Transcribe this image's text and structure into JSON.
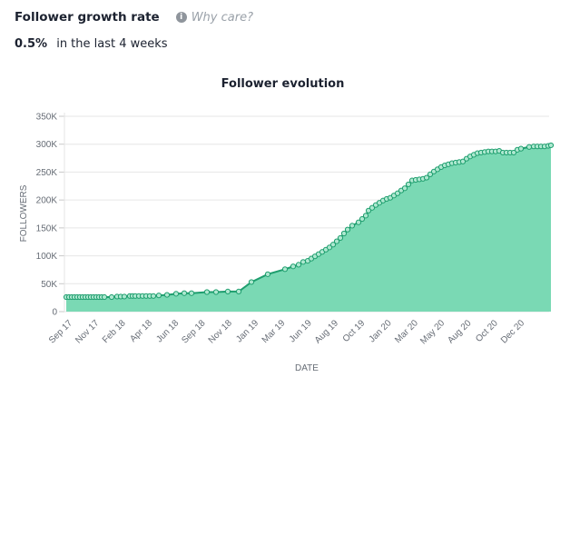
{
  "header": {
    "title": "Follower growth rate",
    "why_care": "Why care?",
    "info_icon": "info-circle-icon"
  },
  "stat": {
    "value": "0.5%",
    "label": "in the last 4 weeks"
  },
  "colors": {
    "line": "#1e9e6e",
    "fill": "#7ad9b4",
    "grid": "#e6e6e6"
  },
  "chart_data": {
    "type": "area",
    "title": "Follower evolution",
    "xlabel": "DATE",
    "ylabel": "FOLLOWERS",
    "ylim": [
      0,
      350000
    ],
    "y_ticks": [
      "0",
      "50K",
      "100K",
      "150K",
      "200K",
      "250K",
      "300K",
      "350K"
    ],
    "x_ticks": [
      "Sep 17",
      "Nov 17",
      "Feb 18",
      "Apr 18",
      "Jun 18",
      "Sep 18",
      "Nov 18",
      "Jan 19",
      "Mar 19",
      "Jun 19",
      "Aug 19",
      "Oct 19",
      "Jan 20",
      "Mar 20",
      "May 20",
      "Aug 20",
      "Oct 20",
      "Dec 20"
    ],
    "grid": true,
    "legend": "none",
    "series": [
      {
        "name": "Followers",
        "points_k": [
          [
            0,
            26
          ],
          [
            3,
            26
          ],
          [
            6,
            26
          ],
          [
            9,
            26
          ],
          [
            12,
            26
          ],
          [
            15,
            26
          ],
          [
            18,
            26
          ],
          [
            21,
            26
          ],
          [
            24,
            26
          ],
          [
            27,
            26
          ],
          [
            30,
            26
          ],
          [
            33,
            26
          ],
          [
            36,
            26
          ],
          [
            39,
            26
          ],
          [
            42,
            26
          ],
          [
            50,
            26
          ],
          [
            56,
            27
          ],
          [
            60,
            27
          ],
          [
            64,
            27
          ],
          [
            70,
            28
          ],
          [
            73,
            28
          ],
          [
            76,
            28
          ],
          [
            80,
            28
          ],
          [
            84,
            28
          ],
          [
            88,
            28
          ],
          [
            92,
            28
          ],
          [
            96,
            28
          ],
          [
            102,
            29
          ],
          [
            111,
            30
          ],
          [
            121,
            32
          ],
          [
            130,
            33
          ],
          [
            138,
            33
          ],
          [
            155,
            35
          ],
          [
            165,
            35
          ],
          [
            178,
            36
          ],
          [
            190,
            36
          ],
          [
            204,
            53
          ],
          [
            222,
            67
          ],
          [
            241,
            76
          ],
          [
            250,
            81
          ],
          [
            256,
            84
          ],
          [
            261,
            89
          ],
          [
            266,
            91
          ],
          [
            270,
            95
          ],
          [
            274,
            99
          ],
          [
            278,
            103
          ],
          [
            282,
            107
          ],
          [
            286,
            111
          ],
          [
            290,
            115
          ],
          [
            294,
            120
          ],
          [
            298,
            126
          ],
          [
            302,
            132
          ],
          [
            306,
            140
          ],
          [
            310,
            147
          ],
          [
            315,
            154
          ],
          [
            322,
            160
          ],
          [
            326,
            166
          ],
          [
            330,
            172
          ],
          [
            333,
            181
          ],
          [
            337,
            186
          ],
          [
            341,
            191
          ],
          [
            345,
            195
          ],
          [
            349,
            199
          ],
          [
            353,
            202
          ],
          [
            357,
            204
          ],
          [
            361,
            208
          ],
          [
            365,
            212
          ],
          [
            369,
            217
          ],
          [
            373,
            221
          ],
          [
            377,
            228
          ],
          [
            381,
            235
          ],
          [
            385,
            236
          ],
          [
            389,
            237
          ],
          [
            393,
            238
          ],
          [
            397,
            240
          ],
          [
            401,
            246
          ],
          [
            405,
            251
          ],
          [
            409,
            255
          ],
          [
            413,
            259
          ],
          [
            417,
            262
          ],
          [
            421,
            264
          ],
          [
            425,
            266
          ],
          [
            429,
            267
          ],
          [
            433,
            268
          ],
          [
            437,
            269
          ],
          [
            441,
            274
          ],
          [
            445,
            278
          ],
          [
            449,
            281
          ],
          [
            453,
            284
          ],
          [
            457,
            285
          ],
          [
            461,
            286
          ],
          [
            465,
            287
          ],
          [
            469,
            287
          ],
          [
            473,
            287
          ],
          [
            477,
            288
          ],
          [
            481,
            285
          ],
          [
            485,
            285
          ],
          [
            489,
            285
          ],
          [
            493,
            285
          ],
          [
            497,
            290
          ],
          [
            501,
            292
          ],
          [
            510,
            295
          ],
          [
            515,
            296
          ],
          [
            519,
            296
          ],
          [
            523,
            296
          ],
          [
            527,
            296
          ],
          [
            531,
            297
          ],
          [
            534,
            298
          ]
        ]
      }
    ]
  }
}
